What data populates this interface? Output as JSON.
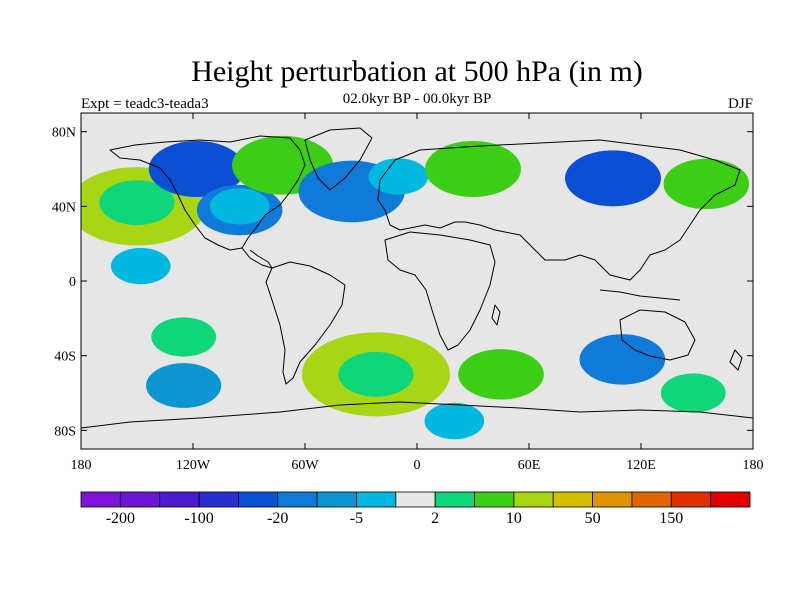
{
  "title": "Height perturbation at 500 hPa (in m)",
  "subtitle": "02.0kyr BP - 00.0kyr BP",
  "left_label": "Expt = teadc3-teada3",
  "right_label": "DJF",
  "background_color": "#e6e6e6",
  "axes": {
    "x_ticks": [
      "180",
      "120W",
      "60W",
      "0",
      "60E",
      "120E",
      "180"
    ],
    "y_ticks": [
      "80N",
      "40N",
      "0",
      "40S",
      "80S"
    ]
  },
  "colorbar": {
    "colors": [
      "#7f14d9",
      "#6a14d4",
      "#4b1ccf",
      "#2a2fd1",
      "#0b50d4",
      "#0f7ad8",
      "#0b96d2",
      "#00b8e0",
      "#e6e6e6",
      "#10d67a",
      "#3cce14",
      "#a8d614",
      "#d2c000",
      "#dc9400",
      "#e06400",
      "#e03000",
      "#e00000"
    ],
    "labels": [
      "-200",
      "-100",
      "-20",
      "-5",
      "2",
      "10",
      "50",
      "150"
    ]
  },
  "chart_data": {
    "type": "heatmap",
    "title": "Height perturbation at 500 hPa (in m)",
    "subtitle": "02.0kyr BP - 00.0kyr BP",
    "season": "DJF",
    "xlim": [
      -180,
      180
    ],
    "ylim": [
      -90,
      90
    ],
    "x_ticks": [
      -180,
      -120,
      -60,
      0,
      60,
      120,
      180
    ],
    "y_ticks": [
      80,
      40,
      0,
      -40,
      -80
    ],
    "contour_levels": [
      -200,
      -150,
      -100,
      -50,
      -20,
      -10,
      -5,
      -2,
      2,
      5,
      10,
      20,
      50,
      100,
      150,
      200
    ],
    "anomalies": [
      {
        "lon": -150,
        "lat": 40,
        "value": 18,
        "color": "#a8d614"
      },
      {
        "lon": -150,
        "lat": 42,
        "value": 6,
        "color": "#10d67a"
      },
      {
        "lon": -118,
        "lat": 60,
        "value": -10,
        "color": "#0b50d4"
      },
      {
        "lon": -95,
        "lat": 38,
        "value": -8,
        "color": "#0f7ad8"
      },
      {
        "lon": -95,
        "lat": 40,
        "value": -3,
        "color": "#00b8e0"
      },
      {
        "lon": -72,
        "lat": 62,
        "value": 11,
        "color": "#3cce14"
      },
      {
        "lon": -35,
        "lat": 48,
        "value": -12,
        "color": "#0f7ad8"
      },
      {
        "lon": -10,
        "lat": 56,
        "value": -3,
        "color": "#00b8e0"
      },
      {
        "lon": 30,
        "lat": 60,
        "value": 10,
        "color": "#3cce14"
      },
      {
        "lon": 105,
        "lat": 55,
        "value": -10,
        "color": "#0b50d4"
      },
      {
        "lon": 155,
        "lat": 52,
        "value": 8,
        "color": "#3cce14"
      },
      {
        "lon": -148,
        "lat": 8,
        "value": -3,
        "color": "#00b8e0"
      },
      {
        "lon": -125,
        "lat": -30,
        "value": 4,
        "color": "#10d67a"
      },
      {
        "lon": -125,
        "lat": -56,
        "value": -6,
        "color": "#0b96d2"
      },
      {
        "lon": -22,
        "lat": -50,
        "value": 20,
        "color": "#a8d614"
      },
      {
        "lon": -22,
        "lat": -50,
        "value": 6,
        "color": "#10d67a"
      },
      {
        "lon": 45,
        "lat": -50,
        "value": 8,
        "color": "#3cce14"
      },
      {
        "lon": 110,
        "lat": -42,
        "value": -8,
        "color": "#0f7ad8"
      },
      {
        "lon": 148,
        "lat": -60,
        "value": 4,
        "color": "#10d67a"
      },
      {
        "lon": 20,
        "lat": -75,
        "value": -3,
        "color": "#00b8e0"
      }
    ]
  }
}
